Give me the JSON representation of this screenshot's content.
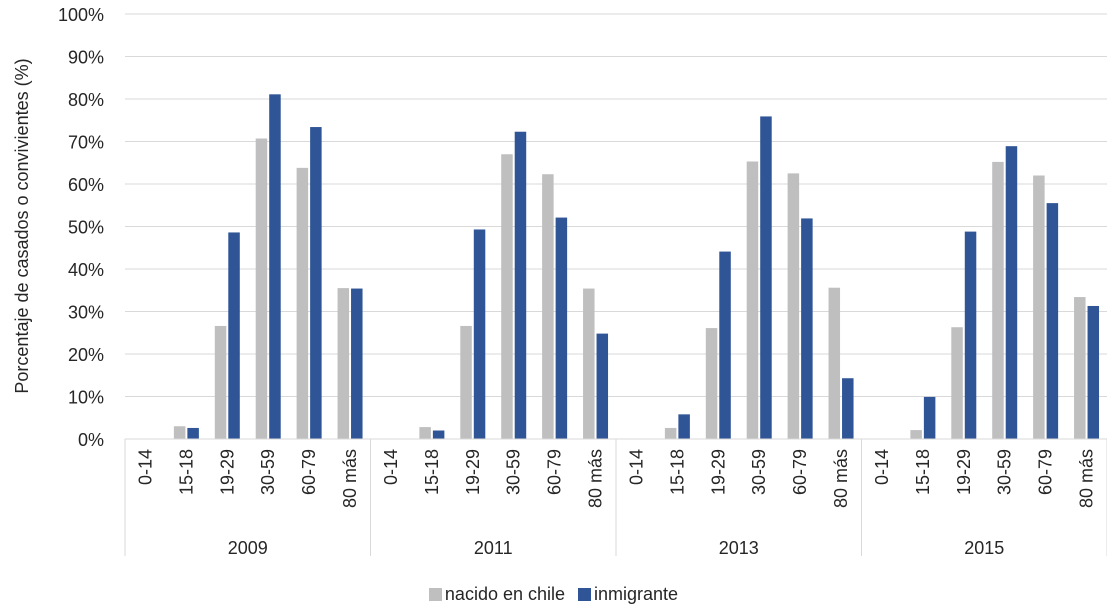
{
  "chart_data": {
    "type": "bar",
    "ylabel": "Porcentaje de casados o convivientes (%)",
    "ylim": [
      0,
      100
    ],
    "yticks": [
      "0%",
      "10%",
      "20%",
      "30%",
      "40%",
      "50%",
      "60%",
      "70%",
      "80%",
      "90%",
      "100%"
    ],
    "grid": true,
    "legend_position": "bottom",
    "groups": [
      {
        "label": "2009",
        "categories": [
          "0-14",
          "15-18",
          "19-29",
          "30-59",
          "60-79",
          "80 más"
        ]
      },
      {
        "label": "2011",
        "categories": [
          "0-14",
          "15-18",
          "19-29",
          "30-59",
          "60-79",
          "80 más"
        ]
      },
      {
        "label": "2013",
        "categories": [
          "0-14",
          "15-18",
          "19-29",
          "30-59",
          "60-79",
          "80 más"
        ]
      },
      {
        "label": "2015",
        "categories": [
          "0-14",
          "15-18",
          "19-29",
          "30-59",
          "60-79",
          "80 más"
        ]
      }
    ],
    "series": [
      {
        "name": "nacido en chile",
        "color": "#BFBFBF",
        "values": [
          0.1,
          3.0,
          26.6,
          70.7,
          63.8,
          35.5,
          0.1,
          2.8,
          26.6,
          67.0,
          62.3,
          35.4,
          0.1,
          2.6,
          26.1,
          65.3,
          62.5,
          35.6,
          0.1,
          2.1,
          26.3,
          65.2,
          62.0,
          33.4
        ]
      },
      {
        "name": "inmigrante",
        "color": "#2F5597",
        "values": [
          0,
          2.6,
          48.6,
          81.1,
          73.4,
          35.4,
          0,
          2.0,
          49.3,
          72.3,
          52.1,
          24.8,
          0,
          5.8,
          44.1,
          75.9,
          51.9,
          14.3,
          0,
          9.9,
          48.8,
          68.9,
          55.5,
          31.3
        ]
      }
    ]
  }
}
